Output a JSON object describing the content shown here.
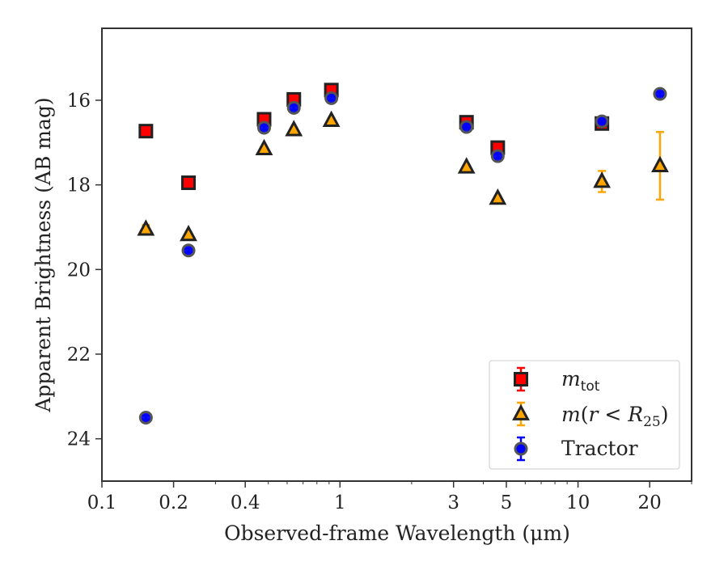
{
  "chart_data": {
    "type": "scatter",
    "title": "",
    "xlabel": "Observed-frame Wavelength (μm)",
    "ylabel": "Apparent Brightness (AB mag)",
    "xscale": "log",
    "yinverted": true,
    "xlim": [
      0.1,
      30
    ],
    "ylim": [
      25,
      14.3
    ],
    "xticks": [
      {
        "value": 0.1,
        "label": "0.1"
      },
      {
        "value": 0.2,
        "label": "0.2"
      },
      {
        "value": 0.4,
        "label": "0.4"
      },
      {
        "value": 1,
        "label": "1"
      },
      {
        "value": 3,
        "label": "3"
      },
      {
        "value": 5,
        "label": "5"
      },
      {
        "value": 10,
        "label": "10"
      },
      {
        "value": 20,
        "label": "20"
      }
    ],
    "yticks": [
      {
        "value": 16,
        "label": "16"
      },
      {
        "value": 18,
        "label": "18"
      },
      {
        "value": 20,
        "label": "20"
      },
      {
        "value": 22,
        "label": "22"
      },
      {
        "value": 24,
        "label": "24"
      }
    ],
    "legend_position": "bottom-right",
    "grid": false,
    "series": [
      {
        "key": "mtot",
        "marker": "square",
        "color": "#ff0000",
        "edge": "#222222",
        "points": [
          {
            "x": 0.153,
            "y": 16.73,
            "err": 0.05
          },
          {
            "x": 0.231,
            "y": 17.95,
            "err": 0.05
          },
          {
            "x": 0.48,
            "y": 16.45,
            "err": 0.05
          },
          {
            "x": 0.64,
            "y": 15.98,
            "err": 0.05
          },
          {
            "x": 0.92,
            "y": 15.76,
            "err": 0.05
          },
          {
            "x": 3.4,
            "y": 16.52,
            "err": 0.05
          },
          {
            "x": 4.6,
            "y": 17.12,
            "err": 0.05
          },
          {
            "x": 12.6,
            "y": 16.55,
            "err": 0.05
          }
        ]
      },
      {
        "key": "mr25",
        "marker": "triangle",
        "color": "#ffa500",
        "edge": "#222222",
        "points": [
          {
            "x": 0.153,
            "y": 19.05,
            "err": 0.1
          },
          {
            "x": 0.231,
            "y": 19.18,
            "err": 0.05
          },
          {
            "x": 0.48,
            "y": 17.15,
            "err": 0.05
          },
          {
            "x": 0.64,
            "y": 16.7,
            "err": 0.05
          },
          {
            "x": 0.92,
            "y": 16.48,
            "err": 0.05
          },
          {
            "x": 3.4,
            "y": 17.58,
            "err": 0.05
          },
          {
            "x": 4.6,
            "y": 18.32,
            "err": 0.05
          },
          {
            "x": 12.6,
            "y": 17.92,
            "err": 0.25
          },
          {
            "x": 22.1,
            "y": 17.55,
            "err": 0.8
          }
        ]
      },
      {
        "key": "tractor",
        "marker": "circle",
        "color": "#0000ff",
        "edge": "#555555",
        "points": [
          {
            "x": 0.153,
            "y": 23.5,
            "err": 0.05
          },
          {
            "x": 0.231,
            "y": 19.55,
            "err": 0.05
          },
          {
            "x": 0.48,
            "y": 16.65,
            "err": 0.05
          },
          {
            "x": 0.64,
            "y": 16.18,
            "err": 0.05
          },
          {
            "x": 0.92,
            "y": 15.95,
            "err": 0.05
          },
          {
            "x": 3.4,
            "y": 16.63,
            "err": 0.05
          },
          {
            "x": 4.6,
            "y": 17.32,
            "err": 0.05
          },
          {
            "x": 12.6,
            "y": 16.5,
            "err": 0.05
          },
          {
            "x": 22.1,
            "y": 15.85,
            "err": 0.05
          }
        ]
      }
    ],
    "legend": {
      "mtot": {
        "base": "m",
        "sub": "tot"
      },
      "mr25": {
        "pre": "m",
        "mid": "(",
        "r": "r",
        "lt": " < ",
        "R": "R",
        "sub": "25",
        "post": ")"
      },
      "tractor": {
        "text": "Tractor"
      }
    }
  }
}
